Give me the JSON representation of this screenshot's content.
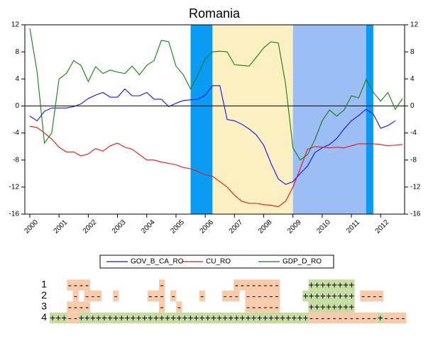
{
  "chart_data": {
    "type": "line",
    "title": "Romania",
    "x": [
      2000,
      2000.25,
      2000.5,
      2000.75,
      2001,
      2001.25,
      2001.5,
      2001.75,
      2002,
      2002.25,
      2002.5,
      2002.75,
      2003,
      2003.25,
      2003.5,
      2003.75,
      2004,
      2004.25,
      2004.5,
      2004.75,
      2005,
      2005.25,
      2005.5,
      2005.75,
      2006,
      2006.25,
      2006.5,
      2006.75,
      2007,
      2007.25,
      2007.5,
      2007.75,
      2008,
      2008.25,
      2008.5,
      2008.75,
      2009,
      2009.25,
      2009.5,
      2009.75,
      2010,
      2010.25,
      2010.5,
      2010.75,
      2011,
      2011.25,
      2011.5,
      2011.75,
      2012,
      2012.25,
      2012.5,
      2012.75
    ],
    "series": [
      {
        "name": "GOV_B_CA_RO",
        "color": "#1010ee",
        "values": [
          -1.5,
          -2.2,
          -0.8,
          -0.3,
          -0.3,
          -0.3,
          -0.1,
          0.3,
          1.1,
          1.6,
          2,
          1.3,
          1.3,
          2.5,
          1.5,
          1.5,
          2,
          1,
          1,
          -0.1,
          0.4,
          0.8,
          0.9,
          1,
          1.6,
          3,
          3,
          -2,
          -2.2,
          -2.7,
          -3.4,
          -4.3,
          -5.8,
          -8.5,
          -10.8,
          -11.6,
          -11.2,
          -10,
          -8.9,
          -6.9,
          -6.2,
          -5.7,
          -4.8,
          -3.4,
          -2.2,
          -1.4,
          -0.5,
          -1.2,
          -3.3,
          -2.9,
          -2.2,
          null
        ]
      },
      {
        "name": "CU_RO",
        "color": "#ee1010",
        "values": [
          -3,
          -3.2,
          -4,
          -4.9,
          -6.1,
          -6.8,
          -6.8,
          -7.4,
          -7.1,
          -6.3,
          -6.7,
          -5.9,
          -5.5,
          -6.1,
          -6.4,
          -7.2,
          -8,
          -8,
          -8.3,
          -8.5,
          -8.7,
          -9.1,
          -9.3,
          -9.7,
          -10.2,
          -10.4,
          -11.2,
          -12,
          -13.2,
          -14.1,
          -14.4,
          -14.4,
          -14.6,
          -14.7,
          -14.9,
          -14.1,
          -12,
          -9.3,
          -6.4,
          -6,
          -6.1,
          -6.2,
          -6.1,
          -6.2,
          -5.9,
          -5.6,
          -5.6,
          -5.6,
          -5.7,
          -5.9,
          -5.8,
          -5.7
        ]
      },
      {
        "name": "GDP_D_RO",
        "color": "#108010",
        "values": [
          11.5,
          5,
          -5.5,
          -4,
          4,
          4.8,
          6.7,
          6,
          3.6,
          5.8,
          4.8,
          5.3,
          5,
          4.8,
          5.9,
          4.6,
          6,
          6.7,
          9.7,
          9.5,
          5.9,
          4.6,
          2.5,
          4.6,
          7,
          8,
          8.1,
          8,
          6.1,
          6,
          5.9,
          7.2,
          8.6,
          9.5,
          9.3,
          3.2,
          -6.2,
          -8,
          -7.2,
          -5,
          -2.2,
          -0.6,
          -1.5,
          -0.6,
          1.5,
          1.2,
          3.9,
          2,
          0.7,
          2,
          -0.5,
          1.1
        ]
      }
    ],
    "shaded_regions": [
      {
        "start": 2005.5,
        "end": 2006.25,
        "color": "#0a9cf5"
      },
      {
        "start": 2006.25,
        "end": 2009,
        "color": "#fcefc2"
      },
      {
        "start": 2009,
        "end": 2011.5,
        "color": "#9dbdf5"
      },
      {
        "start": 2011.5,
        "end": 2011.75,
        "color": "#0a9cf5"
      }
    ],
    "xlim": [
      1999.83,
      2012.82
    ],
    "xticks": [
      2000,
      2001,
      2002,
      2003,
      2004,
      2005,
      2006,
      2007,
      2008,
      2009,
      2010,
      2011,
      2012
    ],
    "ylim": [
      -16,
      12
    ],
    "yticks": [
      -16,
      -12,
      -8,
      -4,
      0,
      4,
      8,
      12
    ],
    "zero_line": true
  },
  "sign_table": {
    "colors": {
      "+": "#c6dca2",
      "-": "#f7cbab"
    },
    "rows": [
      {
        "label": "1",
        "cells": "   ----            -            --------     ++++++++         "
      },
      {
        "label": "2",
        "cells": "    - ---  -     --- -    -   --- ------    +++++++++ ----    "
      },
      {
        "label": "3",
        "cells": "   ----            -  -           ------     ++++++++         "
      },
      {
        "label": "4",
        "cells": "+++--++++++++++++++++++++++++++++++++++++++++------------+----"
      }
    ]
  }
}
